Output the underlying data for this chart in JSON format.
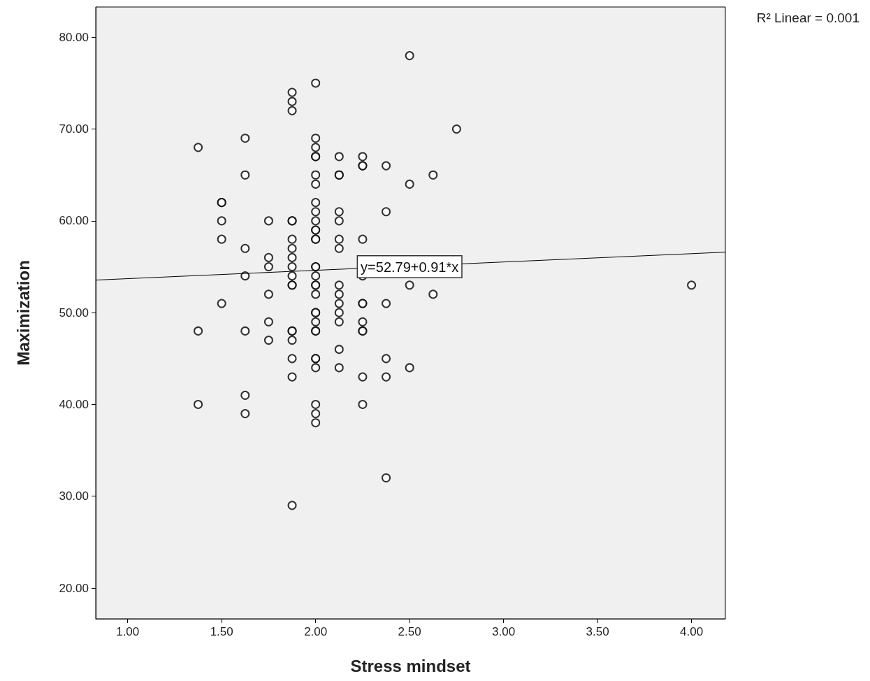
{
  "chart_data": {
    "type": "scatter",
    "xlabel": "Stress mindset",
    "ylabel": "Maximization",
    "xlim": [
      0.83,
      4.18
    ],
    "ylim": [
      16.65,
      83.3
    ],
    "xticks": [
      {
        "value": 1,
        "label": "1.00"
      },
      {
        "value": 1.5,
        "label": "1.50"
      },
      {
        "value": 2,
        "label": "2.00"
      },
      {
        "value": 2.5,
        "label": "2.50"
      },
      {
        "value": 3,
        "label": "3.00"
      },
      {
        "value": 3.5,
        "label": "3.50"
      },
      {
        "value": 4,
        "label": "4.00"
      }
    ],
    "yticks": [
      {
        "value": 20,
        "label": "20.00"
      },
      {
        "value": 30,
        "label": "30.00"
      },
      {
        "value": 40,
        "label": "40.00"
      },
      {
        "value": 50,
        "label": "50.00"
      },
      {
        "value": 60,
        "label": "60.00"
      },
      {
        "value": 70,
        "label": "70.00"
      },
      {
        "value": 80,
        "label": "80.00"
      }
    ],
    "grid": false,
    "annotations": [
      "R² Linear = 0.001",
      {
        "text": "y=52.79+0.91*x",
        "x": 2.5,
        "y": 55
      }
    ],
    "series": [
      {
        "color": "#000000",
        "marker": "circle",
        "x": [
          1.375,
          1.375,
          1.375,
          1.5,
          1.5,
          1.5,
          1.5,
          1.5,
          1.625,
          1.625,
          1.625,
          1.625,
          1.625,
          1.625,
          1.625,
          1.75,
          1.75,
          1.75,
          1.75,
          1.75,
          1.75,
          1.875,
          1.875,
          1.875,
          1.875,
          1.875,
          1.875,
          1.875,
          1.875,
          1.875,
          1.875,
          1.875,
          1.875,
          1.875,
          1.875,
          1.875,
          1.875,
          1.875,
          1.875,
          2,
          2,
          2,
          2,
          2,
          2,
          2,
          2,
          2,
          2,
          2,
          2,
          2,
          2,
          2,
          2,
          2,
          2,
          2,
          2,
          2,
          2,
          2,
          2,
          2,
          2,
          2,
          2,
          2,
          2,
          2,
          2.125,
          2.125,
          2.125,
          2.125,
          2.125,
          2.125,
          2.125,
          2.125,
          2.125,
          2.125,
          2.125,
          2.125,
          2.125,
          2.125,
          2.25,
          2.25,
          2.25,
          2.25,
          2.25,
          2.25,
          2.25,
          2.25,
          2.25,
          2.25,
          2.25,
          2.25,
          2.375,
          2.375,
          2.375,
          2.375,
          2.375,
          2.375,
          2.5,
          2.5,
          2.5,
          2.5,
          2.625,
          2.625,
          2.75,
          4
        ],
        "values": [
          68,
          48,
          40,
          62,
          62,
          60,
          58,
          51,
          69,
          65,
          57,
          54,
          48,
          41,
          39,
          60,
          56,
          55,
          52,
          49,
          47,
          74,
          73,
          72,
          60,
          60,
          58,
          57,
          56,
          55,
          54,
          53,
          53,
          48,
          48,
          47,
          45,
          43,
          29,
          75,
          69,
          68,
          67,
          67,
          65,
          64,
          62,
          61,
          60,
          59,
          59,
          58,
          58,
          55,
          55,
          54,
          53,
          53,
          52,
          50,
          50,
          49,
          48,
          48,
          45,
          45,
          44,
          40,
          39,
          38,
          67,
          65,
          65,
          61,
          60,
          58,
          57,
          53,
          52,
          51,
          50,
          49,
          46,
          44,
          67,
          66,
          66,
          58,
          54,
          51,
          51,
          49,
          48,
          48,
          43,
          40,
          66,
          61,
          51,
          45,
          43,
          32,
          78,
          64,
          53,
          44,
          65,
          52,
          70,
          53
        ]
      },
      {
        "type": "line",
        "marker": "none",
        "color": "#000000",
        "x": [
          0.83,
          4.18
        ],
        "values": [
          53.55,
          56.59
        ]
      }
    ]
  }
}
